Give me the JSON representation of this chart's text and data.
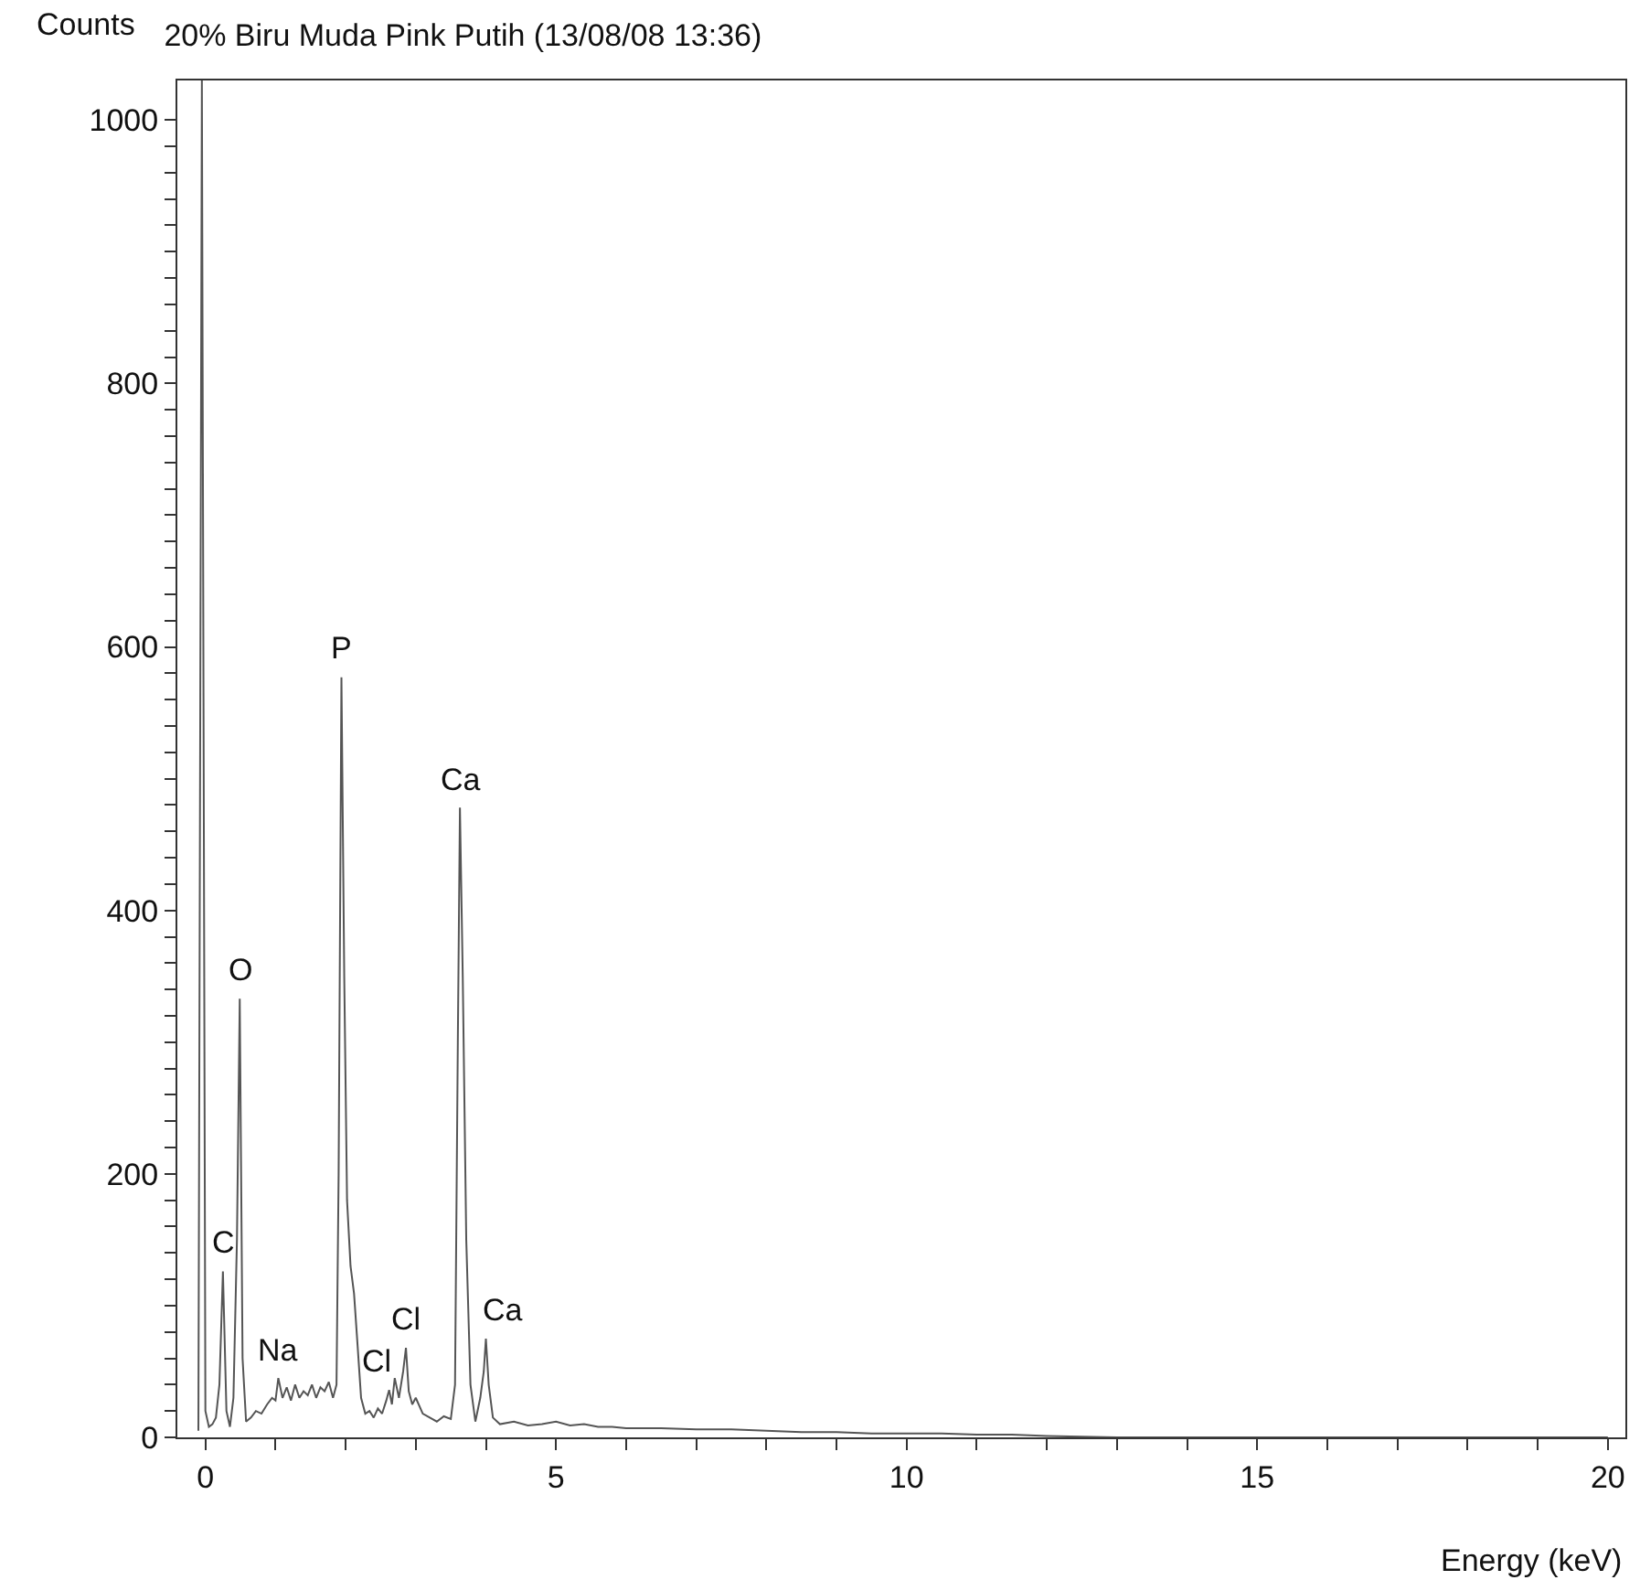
{
  "chart_data": {
    "type": "line",
    "title": "20% Biru Muda Pink Putih (13/08/08 13:36)",
    "xlabel": "Energy (keV)",
    "ylabel": "Counts",
    "x": [
      -0.1,
      -0.05,
      0.0,
      0.05,
      0.1,
      0.15,
      0.2,
      0.25,
      0.3,
      0.35,
      0.4,
      0.45,
      0.49,
      0.53,
      0.58,
      0.65,
      0.72,
      0.8,
      0.88,
      0.95,
      1.0,
      1.04,
      1.1,
      1.16,
      1.22,
      1.28,
      1.34,
      1.4,
      1.46,
      1.52,
      1.58,
      1.64,
      1.7,
      1.76,
      1.82,
      1.87,
      1.9,
      1.94,
      1.98,
      2.02,
      2.07,
      2.12,
      2.17,
      2.22,
      2.28,
      2.34,
      2.4,
      2.46,
      2.52,
      2.58,
      2.62,
      2.66,
      2.7,
      2.76,
      2.82,
      2.86,
      2.9,
      2.95,
      3.0,
      3.1,
      3.2,
      3.3,
      3.4,
      3.5,
      3.56,
      3.6,
      3.63,
      3.67,
      3.72,
      3.78,
      3.85,
      3.92,
      3.97,
      4.0,
      4.04,
      4.1,
      4.2,
      4.4,
      4.6,
      4.8,
      5.0,
      5.2,
      5.4,
      5.6,
      5.8,
      6.0,
      6.5,
      7.0,
      7.5,
      8.0,
      8.5,
      9.0,
      9.5,
      10.0,
      10.5,
      11.0,
      11.5,
      12.0,
      13,
      14,
      15,
      16,
      17,
      18,
      19,
      20
    ],
    "series": [
      {
        "color": "#555555",
        "values": [
          5,
          1030,
          20,
          8,
          10,
          15,
          40,
          126,
          20,
          8,
          30,
          150,
          333,
          60,
          12,
          15,
          20,
          18,
          25,
          30,
          28,
          45,
          30,
          38,
          28,
          40,
          30,
          35,
          32,
          40,
          30,
          38,
          35,
          42,
          30,
          40,
          200,
          577,
          350,
          180,
          130,
          109,
          70,
          30,
          18,
          20,
          15,
          22,
          18,
          28,
          36,
          25,
          45,
          30,
          50,
          68,
          35,
          25,
          30,
          18,
          15,
          12,
          16,
          14,
          40,
          300,
          478,
          350,
          150,
          40,
          12,
          30,
          50,
          75,
          40,
          15,
          10,
          12,
          9,
          10,
          12,
          9,
          10,
          8,
          8,
          7,
          7,
          6,
          6,
          5,
          4,
          4,
          3,
          3,
          3,
          2,
          2,
          1,
          0,
          0,
          0,
          0,
          0,
          0,
          0,
          0
        ]
      }
    ],
    "xlim": [
      -0.4,
      20.25
    ],
    "ylim": [
      0,
      1030
    ],
    "xticks": [
      0,
      {
        "value": 1,
        "label": null
      },
      {
        "value": 2,
        "label": null
      },
      {
        "value": 3,
        "label": null
      },
      {
        "value": 4,
        "label": null
      },
      5,
      {
        "value": 6,
        "label": null
      },
      {
        "value": 7,
        "label": null
      },
      {
        "value": 8,
        "label": null
      },
      {
        "value": 9,
        "label": null
      },
      10,
      {
        "value": 11,
        "label": null
      },
      {
        "value": 12,
        "label": null
      },
      {
        "value": 13,
        "label": null
      },
      {
        "value": 14,
        "label": null
      },
      15,
      {
        "value": 16,
        "label": null
      },
      {
        "value": 17,
        "label": null
      },
      {
        "value": 18,
        "label": null
      },
      {
        "value": 19,
        "label": null
      },
      20
    ],
    "yticks": [
      0,
      {
        "value": 20,
        "label": null
      },
      {
        "value": 40,
        "label": null
      },
      {
        "value": 60,
        "label": null
      },
      {
        "value": 80,
        "label": null
      },
      {
        "value": 100,
        "label": null
      },
      {
        "value": 120,
        "label": null
      },
      {
        "value": 140,
        "label": null
      },
      {
        "value": 160,
        "label": null
      },
      {
        "value": 180,
        "label": null
      },
      200,
      {
        "value": 220,
        "label": null
      },
      {
        "value": 240,
        "label": null
      },
      {
        "value": 260,
        "label": null
      },
      {
        "value": 280,
        "label": null
      },
      {
        "value": 300,
        "label": null
      },
      {
        "value": 320,
        "label": null
      },
      {
        "value": 340,
        "label": null
      },
      {
        "value": 360,
        "label": null
      },
      {
        "value": 380,
        "label": null
      },
      400,
      {
        "value": 420,
        "label": null
      },
      {
        "value": 440,
        "label": null
      },
      {
        "value": 460,
        "label": null
      },
      {
        "value": 480,
        "label": null
      },
      {
        "value": 500,
        "label": null
      },
      {
        "value": 520,
        "label": null
      },
      {
        "value": 540,
        "label": null
      },
      {
        "value": 560,
        "label": null
      },
      {
        "value": 580,
        "label": null
      },
      600,
      {
        "value": 620,
        "label": null
      },
      {
        "value": 640,
        "label": null
      },
      {
        "value": 660,
        "label": null
      },
      {
        "value": 680,
        "label": null
      },
      {
        "value": 700,
        "label": null
      },
      {
        "value": 720,
        "label": null
      },
      {
        "value": 740,
        "label": null
      },
      {
        "value": 760,
        "label": null
      },
      {
        "value": 780,
        "label": null
      },
      800,
      {
        "value": 820,
        "label": null
      },
      {
        "value": 840,
        "label": null
      },
      {
        "value": 860,
        "label": null
      },
      {
        "value": 880,
        "label": null
      },
      {
        "value": 900,
        "label": null
      },
      {
        "value": 920,
        "label": null
      },
      {
        "value": 940,
        "label": null
      },
      {
        "value": 960,
        "label": null
      },
      {
        "value": 980,
        "label": null
      },
      1000
    ],
    "marker": "none",
    "line_style": "solid",
    "annotations": [
      {
        "text": "C",
        "x": 0.25,
        "y": 126
      },
      {
        "text": "O",
        "x": 0.49,
        "y": 333
      },
      {
        "text": "Na",
        "x": 1.04,
        "y": 45
      },
      {
        "text": "P",
        "x": 1.94,
        "y": 577
      },
      {
        "text": "Cl",
        "x": 2.62,
        "y": 36
      },
      {
        "text": "Cl",
        "x": 2.86,
        "y": 68
      },
      {
        "text": "Ca",
        "x": 3.63,
        "y": 478
      },
      {
        "text": "Ca",
        "x": 4.0,
        "y": 75
      }
    ]
  }
}
